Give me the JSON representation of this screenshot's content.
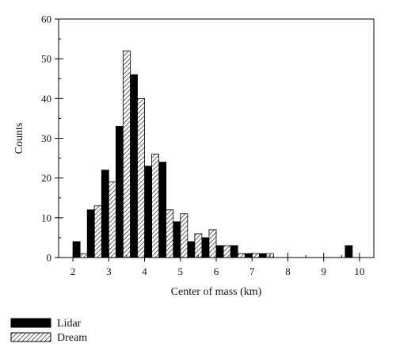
{
  "chart_data": {
    "type": "bar",
    "xlabel": "Center of mass (km)",
    "ylabel": "Counts",
    "xlim": [
      1.6,
      10.4
    ],
    "ylim": [
      0,
      60
    ],
    "xticks": [
      2,
      3,
      4,
      5,
      6,
      7,
      8,
      9,
      10
    ],
    "yticks": [
      0,
      10,
      20,
      30,
      40,
      50,
      60
    ],
    "bin_width": 0.4,
    "bin_centers": [
      2.2,
      2.6,
      3.0,
      3.4,
      3.8,
      4.2,
      4.6,
      5.0,
      5.4,
      5.8,
      6.2,
      6.6,
      7.0,
      7.4,
      7.8,
      8.2,
      8.6,
      9.0,
      9.4,
      9.8
    ],
    "legend_position": "bottom-left",
    "grid": false,
    "series": [
      {
        "name": "Lidar",
        "color": "#000000",
        "pattern": "solid",
        "values": [
          4,
          12,
          22,
          33,
          46,
          23,
          24,
          9,
          4,
          5,
          3,
          3,
          1,
          1,
          3
        ]
      },
      {
        "name": "Dream",
        "color": "#ffffff",
        "pattern": "hatched",
        "values": [
          1,
          13,
          19,
          52,
          40,
          26,
          12,
          11,
          6,
          7,
          3,
          1,
          1,
          1
        ]
      }
    ],
    "lidar_bins": [
      2.2,
      2.6,
      3.0,
      3.4,
      3.8,
      4.2,
      4.6,
      5.0,
      5.4,
      5.8,
      6.2,
      6.6,
      7.0,
      7.4,
      9.8
    ],
    "dream_bins": [
      2.2,
      2.6,
      3.0,
      3.4,
      3.8,
      4.2,
      4.6,
      5.0,
      5.4,
      5.8,
      6.2,
      6.6,
      7.0,
      7.4
    ]
  }
}
